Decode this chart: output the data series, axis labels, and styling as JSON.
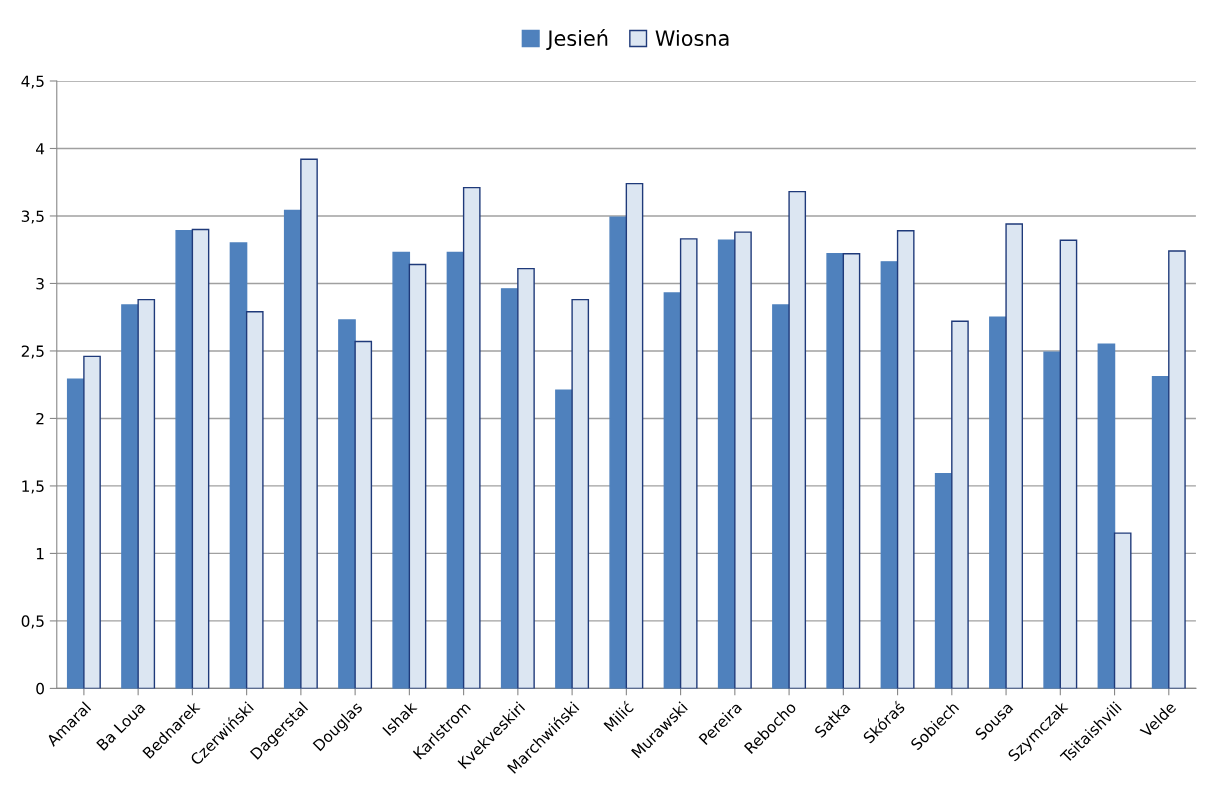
{
  "chart_data": {
    "type": "bar",
    "categories": [
      "Amaral",
      "Ba Loua",
      "Bednarek",
      "Czerwiński",
      "Dagerstal",
      "Douglas",
      "Ishak",
      "Karlstrom",
      "Kvekveskiri",
      "Marchwiński",
      "Milić",
      "Murawski",
      "Pereira",
      "Rebocho",
      "Satka",
      "Skóraś",
      "Sobiech",
      "Sousa",
      "Szymczak",
      "Tsitaishvili",
      "Velde"
    ],
    "series": [
      {
        "name": "Jesień",
        "color": "#4f81bd",
        "values": [
          2.29,
          2.84,
          3.39,
          3.3,
          3.54,
          2.73,
          3.23,
          3.23,
          2.96,
          2.21,
          3.49,
          2.93,
          3.32,
          2.84,
          3.22,
          3.16,
          1.59,
          2.75,
          2.49,
          2.55,
          2.31
        ]
      },
      {
        "name": "Wiosna",
        "color": "#dce6f2",
        "values": [
          2.46,
          2.88,
          3.4,
          2.79,
          3.92,
          2.57,
          3.14,
          3.71,
          3.11,
          2.88,
          3.74,
          3.33,
          3.38,
          3.68,
          3.22,
          3.39,
          2.72,
          3.44,
          3.32,
          1.15,
          3.24
        ]
      }
    ],
    "ylim": [
      0,
      4.5
    ],
    "yticks": [
      0,
      {
        "value": 0.5,
        "label": "0,5"
      },
      1,
      {
        "value": 1.5,
        "label": "1,5"
      },
      2,
      {
        "value": 2.5,
        "label": "2,5"
      },
      3,
      {
        "value": 3.5,
        "label": "3,5"
      },
      4,
      {
        "value": 4.5,
        "label": "4,5"
      }
    ],
    "grid": "y",
    "legend": "top"
  }
}
